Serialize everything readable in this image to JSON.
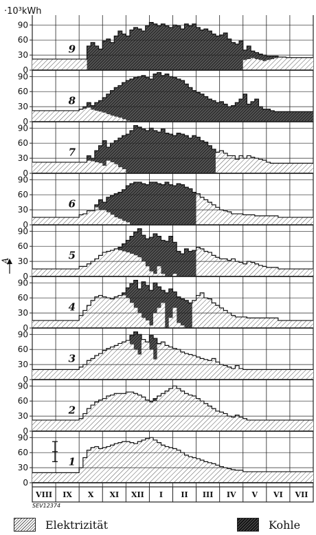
{
  "chart_data": {
    "type": "area",
    "y_unit_label": "·10³kWh",
    "y_axis_label": "A",
    "yticks": [
      0,
      30,
      60,
      90
    ],
    "ylim": [
      0,
      100
    ],
    "months": [
      "VIII",
      "IX",
      "X",
      "XI",
      "XII",
      "I",
      "II",
      "III",
      "IV",
      "V",
      "VI",
      "VII"
    ],
    "reference_code": "SEV12374",
    "legend": [
      {
        "label": "Elektrizität",
        "style": "light-hatch"
      },
      {
        "label": "Kohle",
        "style": "dark-hatch"
      }
    ],
    "panels": [
      {
        "label": "9",
        "total": [
          22,
          22,
          22,
          22,
          22,
          22,
          22,
          22,
          22,
          22,
          22,
          22,
          22,
          22,
          48,
          55,
          48,
          42,
          58,
          62,
          55,
          68,
          78,
          72,
          68,
          80,
          85,
          82,
          78,
          88,
          95,
          92,
          88,
          92,
          88,
          85,
          90,
          88,
          82,
          92,
          88,
          92,
          85,
          80,
          82,
          78,
          72,
          68,
          70,
          74,
          62,
          55,
          52,
          58,
          40,
          48,
          38,
          35,
          32,
          30,
          28,
          28,
          28,
          26,
          26,
          25,
          25,
          25,
          25,
          25,
          25,
          25
        ],
        "electric": [
          22,
          22,
          22,
          22,
          22,
          22,
          22,
          22,
          22,
          22,
          22,
          22,
          22,
          22,
          0,
          0,
          0,
          0,
          0,
          0,
          0,
          0,
          0,
          0,
          0,
          0,
          0,
          0,
          0,
          0,
          0,
          0,
          0,
          0,
          0,
          0,
          0,
          0,
          0,
          0,
          0,
          0,
          0,
          0,
          0,
          0,
          0,
          0,
          0,
          0,
          0,
          0,
          0,
          0,
          20,
          22,
          24,
          22,
          20,
          18,
          20,
          22,
          24,
          26,
          26,
          25,
          25,
          25,
          25,
          25,
          25,
          25
        ]
      },
      {
        "label": "8",
        "total": [
          22,
          22,
          22,
          22,
          22,
          22,
          22,
          22,
          22,
          22,
          22,
          22,
          25,
          30,
          38,
          32,
          38,
          42,
          48,
          55,
          62,
          68,
          72,
          78,
          82,
          85,
          88,
          90,
          92,
          88,
          85,
          95,
          98,
          92,
          95,
          90,
          88,
          85,
          82,
          75,
          68,
          62,
          58,
          55,
          50,
          45,
          42,
          38,
          40,
          35,
          30,
          32,
          38,
          45,
          55,
          35,
          40,
          45,
          30,
          25,
          25,
          22,
          20,
          20,
          20,
          20,
          20,
          20,
          20,
          20,
          20,
          20
        ],
        "electric": [
          22,
          22,
          22,
          22,
          22,
          22,
          22,
          22,
          22,
          22,
          22,
          22,
          24,
          26,
          28,
          24,
          22,
          20,
          18,
          15,
          12,
          10,
          8,
          5,
          2,
          0,
          0,
          0,
          0,
          0,
          0,
          0,
          0,
          0,
          0,
          0,
          0,
          0,
          0,
          0,
          0,
          0,
          0,
          0,
          0,
          0,
          0,
          0,
          0,
          0,
          0,
          0,
          0,
          0,
          0,
          0,
          0,
          0,
          0,
          0,
          0,
          0,
          0,
          0,
          0,
          0,
          0,
          0,
          0,
          0,
          0,
          0
        ]
      },
      {
        "label": "7",
        "total": [
          22,
          22,
          22,
          22,
          22,
          22,
          22,
          22,
          22,
          22,
          22,
          22,
          22,
          22,
          35,
          30,
          45,
          55,
          65,
          52,
          60,
          65,
          70,
          75,
          78,
          85,
          95,
          92,
          88,
          85,
          90,
          85,
          82,
          88,
          80,
          78,
          75,
          80,
          78,
          75,
          70,
          75,
          72,
          65,
          62,
          55,
          48,
          42,
          45,
          40,
          35,
          35,
          28,
          35,
          30,
          35,
          32,
          30,
          28,
          26,
          22,
          20,
          20,
          20,
          20,
          20,
          20,
          20,
          20,
          20,
          20,
          20
        ],
        "electric": [
          22,
          22,
          22,
          22,
          22,
          22,
          22,
          22,
          22,
          22,
          22,
          22,
          22,
          22,
          25,
          24,
          22,
          20,
          15,
          25,
          22,
          18,
          12,
          8,
          0,
          0,
          0,
          0,
          0,
          0,
          0,
          0,
          0,
          0,
          0,
          0,
          0,
          0,
          0,
          0,
          0,
          0,
          0,
          0,
          0,
          0,
          0,
          45,
          45,
          40,
          35,
          35,
          28,
          35,
          30,
          35,
          32,
          30,
          28,
          26,
          22,
          20,
          20,
          20,
          20,
          20,
          20,
          20,
          20,
          20,
          20,
          20
        ]
      },
      {
        "label": "6",
        "total": [
          15,
          15,
          15,
          15,
          15,
          15,
          15,
          15,
          15,
          15,
          15,
          15,
          20,
          22,
          28,
          28,
          40,
          50,
          45,
          55,
          58,
          62,
          65,
          70,
          78,
          82,
          85,
          85,
          82,
          80,
          85,
          85,
          82,
          80,
          85,
          80,
          78,
          82,
          80,
          75,
          72,
          65,
          62,
          55,
          50,
          45,
          40,
          35,
          30,
          28,
          26,
          22,
          22,
          22,
          20,
          20,
          20,
          18,
          18,
          18,
          18,
          18,
          18,
          15,
          15,
          15,
          15,
          15,
          15,
          15,
          15,
          15
        ],
        "electric": [
          15,
          15,
          15,
          15,
          15,
          15,
          15,
          15,
          15,
          15,
          15,
          15,
          20,
          22,
          28,
          28,
          35,
          30,
          30,
          25,
          20,
          15,
          12,
          8,
          5,
          0,
          0,
          0,
          0,
          0,
          0,
          0,
          0,
          0,
          0,
          0,
          0,
          0,
          0,
          0,
          0,
          0,
          62,
          55,
          50,
          45,
          40,
          35,
          30,
          28,
          26,
          22,
          22,
          22,
          20,
          20,
          20,
          18,
          18,
          18,
          18,
          18,
          18,
          15,
          15,
          15,
          15,
          15,
          15,
          15,
          15,
          15
        ]
      },
      {
        "label": "5",
        "total": [
          15,
          15,
          15,
          15,
          15,
          15,
          15,
          15,
          15,
          15,
          15,
          15,
          20,
          20,
          25,
          30,
          35,
          42,
          48,
          50,
          52,
          55,
          58,
          65,
          72,
          80,
          88,
          95,
          82,
          75,
          78,
          85,
          80,
          72,
          70,
          80,
          68,
          50,
          45,
          55,
          50,
          52,
          58,
          55,
          50,
          48,
          42,
          38,
          35,
          35,
          32,
          35,
          30,
          28,
          25,
          30,
          28,
          25,
          22,
          20,
          18,
          18,
          18,
          15,
          15,
          15,
          15,
          15,
          15,
          15,
          15,
          15
        ],
        "electric": [
          15,
          15,
          15,
          15,
          15,
          15,
          15,
          15,
          15,
          15,
          15,
          15,
          20,
          20,
          25,
          30,
          35,
          42,
          48,
          50,
          52,
          55,
          52,
          50,
          48,
          45,
          42,
          38,
          30,
          20,
          10,
          5,
          20,
          5,
          0,
          0,
          5,
          0,
          0,
          0,
          0,
          0,
          58,
          55,
          50,
          48,
          42,
          38,
          35,
          35,
          32,
          35,
          30,
          28,
          25,
          30,
          28,
          25,
          22,
          20,
          18,
          18,
          18,
          15,
          15,
          15,
          15,
          15,
          15,
          15,
          15,
          15
        ]
      },
      {
        "label": "4",
        "total": [
          15,
          15,
          15,
          15,
          15,
          15,
          15,
          15,
          15,
          15,
          15,
          15,
          25,
          35,
          45,
          55,
          62,
          65,
          62,
          60,
          58,
          62,
          65,
          70,
          80,
          88,
          95,
          78,
          92,
          85,
          75,
          90,
          82,
          75,
          70,
          78,
          72,
          62,
          58,
          55,
          50,
          55,
          65,
          70,
          60,
          58,
          50,
          45,
          40,
          35,
          30,
          25,
          22,
          22,
          22,
          20,
          20,
          20,
          20,
          20,
          20,
          20,
          20,
          15,
          15,
          15,
          15,
          15,
          15,
          15,
          15,
          15
        ],
        "electric": [
          15,
          15,
          15,
          15,
          15,
          15,
          15,
          15,
          15,
          15,
          15,
          15,
          25,
          35,
          45,
          55,
          62,
          65,
          62,
          60,
          58,
          62,
          65,
          65,
          60,
          50,
          40,
          30,
          20,
          15,
          5,
          30,
          40,
          50,
          0,
          20,
          40,
          10,
          5,
          0,
          0,
          55,
          65,
          70,
          60,
          58,
          50,
          45,
          40,
          35,
          30,
          25,
          22,
          22,
          22,
          20,
          20,
          20,
          20,
          20,
          20,
          20,
          20,
          15,
          15,
          15,
          15,
          15,
          15,
          15,
          15,
          15
        ]
      },
      {
        "label": "3",
        "total": [
          20,
          20,
          20,
          20,
          20,
          20,
          20,
          20,
          20,
          20,
          20,
          20,
          25,
          30,
          38,
          42,
          48,
          52,
          58,
          62,
          65,
          68,
          72,
          75,
          78,
          88,
          95,
          90,
          80,
          75,
          88,
          82,
          72,
          75,
          68,
          65,
          62,
          60,
          55,
          52,
          50,
          48,
          45,
          42,
          40,
          38,
          42,
          35,
          30,
          28,
          25,
          22,
          28,
          22,
          20,
          20,
          20,
          20,
          20,
          20,
          20,
          20,
          20,
          20,
          20,
          20,
          20,
          20,
          20,
          20,
          20,
          20
        ],
        "electric": [
          20,
          20,
          20,
          20,
          20,
          20,
          20,
          20,
          20,
          20,
          20,
          20,
          25,
          30,
          38,
          42,
          48,
          52,
          58,
          62,
          65,
          68,
          72,
          75,
          78,
          70,
          60,
          50,
          80,
          75,
          60,
          40,
          70,
          75,
          68,
          65,
          62,
          60,
          55,
          52,
          50,
          48,
          45,
          42,
          40,
          38,
          42,
          35,
          30,
          28,
          25,
          22,
          28,
          22,
          20,
          20,
          20,
          20,
          20,
          20,
          20,
          20,
          20,
          20,
          20,
          20,
          20,
          20,
          20,
          20,
          20,
          20
        ]
      },
      {
        "label": "2",
        "total": [
          22,
          22,
          22,
          22,
          22,
          22,
          22,
          22,
          22,
          22,
          22,
          22,
          25,
          35,
          45,
          52,
          58,
          62,
          65,
          70,
          72,
          75,
          75,
          75,
          78,
          78,
          75,
          72,
          68,
          62,
          60,
          65,
          70,
          75,
          80,
          85,
          90,
          85,
          80,
          75,
          72,
          70,
          65,
          60,
          55,
          50,
          45,
          40,
          38,
          35,
          30,
          28,
          32,
          28,
          25,
          22,
          22,
          22,
          22,
          22,
          22,
          22,
          22,
          22,
          22,
          22,
          22,
          22,
          22,
          22,
          22,
          22
        ],
        "electric": [
          22,
          22,
          22,
          22,
          22,
          22,
          22,
          22,
          22,
          22,
          22,
          22,
          25,
          35,
          45,
          52,
          58,
          62,
          65,
          70,
          72,
          75,
          75,
          75,
          78,
          78,
          75,
          72,
          68,
          62,
          57,
          60,
          70,
          75,
          80,
          85,
          90,
          85,
          80,
          75,
          72,
          70,
          65,
          60,
          55,
          50,
          45,
          40,
          38,
          35,
          30,
          28,
          32,
          28,
          25,
          22,
          22,
          22,
          22,
          22,
          22,
          22,
          22,
          22,
          22,
          22,
          22,
          22,
          22,
          22,
          22,
          22
        ]
      },
      {
        "label": "1",
        "total": [
          20,
          20,
          20,
          20,
          20,
          20,
          20,
          20,
          20,
          20,
          20,
          20,
          30,
          50,
          65,
          70,
          72,
          68,
          70,
          72,
          75,
          78,
          80,
          82,
          82,
          80,
          78,
          82,
          85,
          88,
          90,
          85,
          80,
          75,
          72,
          70,
          68,
          65,
          60,
          55,
          52,
          50,
          48,
          45,
          42,
          40,
          38,
          35,
          32,
          30,
          28,
          26,
          25,
          25,
          22,
          22,
          22,
          22,
          22,
          22,
          22,
          22,
          22,
          22,
          22,
          22,
          22,
          22,
          22,
          22,
          22,
          22
        ],
        "electric": [
          20,
          20,
          20,
          20,
          20,
          20,
          20,
          20,
          20,
          20,
          20,
          20,
          30,
          50,
          65,
          70,
          72,
          68,
          70,
          72,
          75,
          78,
          80,
          82,
          82,
          80,
          78,
          82,
          85,
          88,
          90,
          85,
          80,
          75,
          72,
          70,
          68,
          65,
          60,
          55,
          52,
          50,
          48,
          45,
          42,
          40,
          38,
          35,
          32,
          30,
          28,
          26,
          25,
          25,
          22,
          22,
          22,
          22,
          22,
          22,
          22,
          22,
          22,
          22,
          22,
          22,
          22,
          22,
          22,
          22,
          22,
          22
        ]
      }
    ]
  }
}
